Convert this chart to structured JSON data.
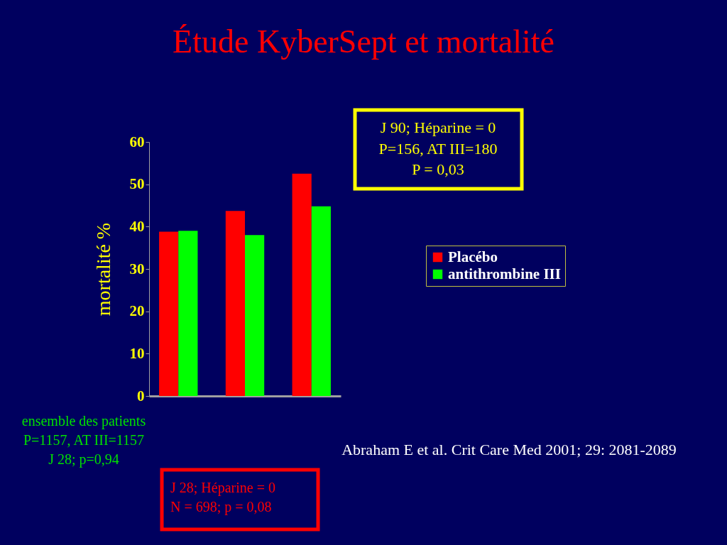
{
  "chart_data": {
    "type": "bar",
    "title": "Étude KyberSept et mortalité",
    "ylabel": "mortalité %",
    "categories": [
      null,
      null,
      null
    ],
    "series": [
      {
        "name": "Placébo",
        "color": "#ff0000",
        "values": [
          38.8,
          43.7,
          52.5
        ]
      },
      {
        "name": "antithrombine III",
        "color": "#00ff00",
        "values": [
          39.0,
          38.0,
          44.8
        ]
      }
    ],
    "ylim": [
      0,
      60
    ],
    "yticks": [
      0,
      10,
      20,
      30,
      40,
      50,
      60
    ],
    "tick_labels": "y",
    "legend": "right",
    "annotations": [
      "J 90; Héparine = 0\nP=156, AT III=180\nP =  0,03",
      "ensemble des patients\nP=1157, AT III=1157\nJ 28; p=0,94",
      "J 28; Héparine = 0\nN = 698; p =  0,08",
      "Abraham E et al. Crit Care Med 2001; 29: 2081-2089"
    ]
  }
}
